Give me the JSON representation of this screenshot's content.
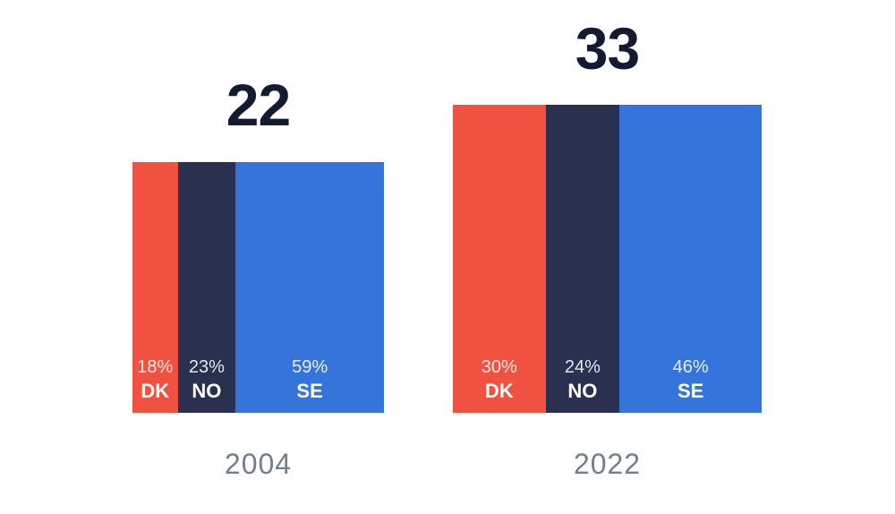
{
  "colors": {
    "dk": "#ef5240",
    "no": "#293050",
    "se": "#3474db",
    "title": "#131b31",
    "year": "#727e8c",
    "segment_label": "#ffffff",
    "background": "#ffffff"
  },
  "chart_data": {
    "type": "bar",
    "variant": "area-proportional stacked squares (waffle-style comparison)",
    "categories": [
      "DK",
      "NO",
      "SE"
    ],
    "unit": "%",
    "series": [
      {
        "name": "2004",
        "total": 22,
        "values": [
          18,
          23,
          59
        ]
      },
      {
        "name": "2022",
        "total": 33,
        "values": [
          30,
          24,
          46
        ]
      }
    ],
    "legend_position": "inside-segments",
    "grid": false,
    "charts": [
      {
        "title": "22",
        "year": "2004",
        "segments": [
          {
            "code": "DK",
            "pct": "18%",
            "width": "18%"
          },
          {
            "code": "NO",
            "pct": "23%",
            "width": "23%"
          },
          {
            "code": "SE",
            "pct": "59%",
            "width": "59%"
          }
        ]
      },
      {
        "title": "33",
        "year": "2022",
        "segments": [
          {
            "code": "DK",
            "pct": "30%",
            "width": "30%"
          },
          {
            "code": "NO",
            "pct": "24%",
            "width": "24%"
          },
          {
            "code": "SE",
            "pct": "46%",
            "width": "46%"
          }
        ]
      }
    ]
  }
}
